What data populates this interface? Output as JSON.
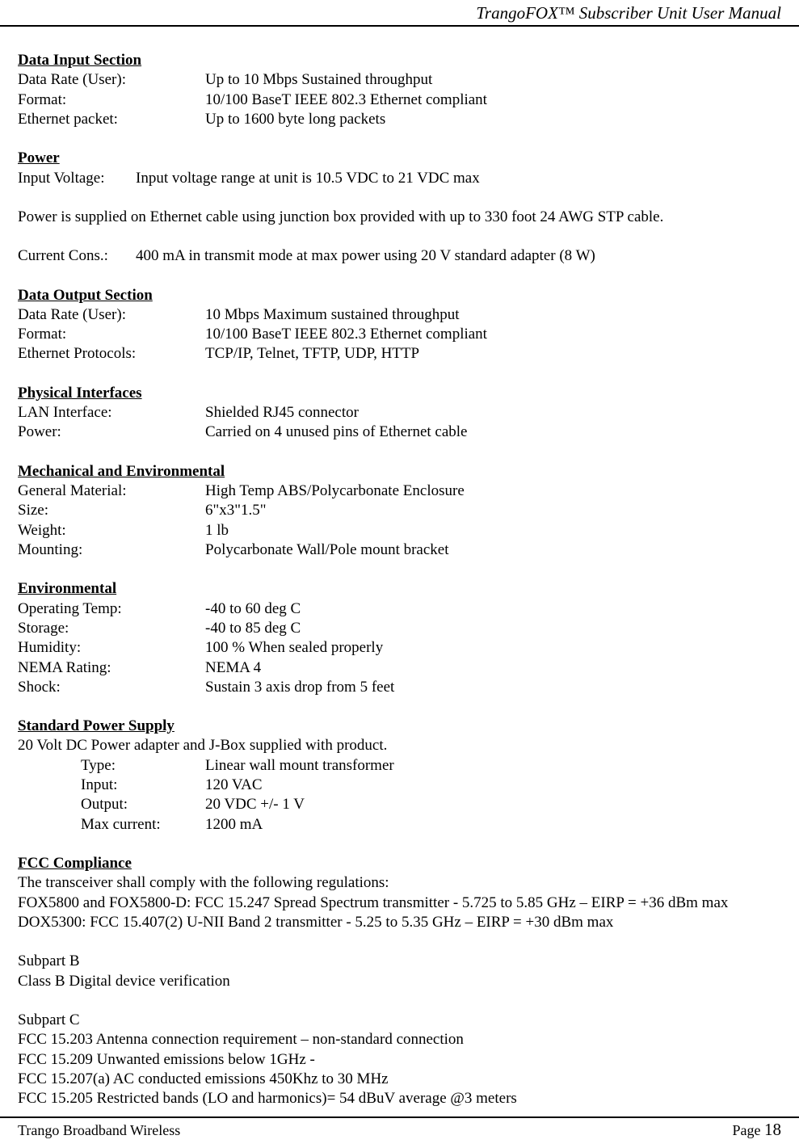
{
  "header": {
    "title": "TrangoFOX™ Subscriber Unit User Manual"
  },
  "sections": {
    "data_input": {
      "heading": "Data Input Section",
      "rows": [
        {
          "label": "Data Rate (User):",
          "value": "Up to 10 Mbps Sustained throughput"
        },
        {
          "label": "Format:",
          "value": "10/100 BaseT IEEE 802.3 Ethernet compliant"
        },
        {
          "label": "Ethernet packet:",
          "value": "Up to 1600 byte long packets"
        }
      ]
    },
    "power": {
      "heading": "Power",
      "row1": {
        "label": "Input Voltage:",
        "value": "Input voltage range at unit is 10.5 VDC to 21 VDC max"
      },
      "para": "Power is supplied on Ethernet cable using junction box provided with up to 330 foot 24 AWG STP cable.",
      "row2": {
        "label": "Current Cons.:",
        "value": "400 mA in transmit mode at max power using 20 V standard adapter (8 W)"
      }
    },
    "data_output": {
      "heading": "Data Output Section",
      "rows": [
        {
          "label": "Data Rate (User):",
          "value": "10 Mbps Maximum sustained throughput"
        },
        {
          "label": "Format:",
          "value": "10/100 BaseT IEEE 802.3 Ethernet compliant"
        },
        {
          "label": "Ethernet Protocols:",
          "value": "TCP/IP, Telnet, TFTP, UDP, HTTP"
        }
      ]
    },
    "physical_interfaces": {
      "heading": "Physical Interfaces",
      "rows": [
        {
          "label": "LAN Interface:",
          "value": "Shielded RJ45 connector"
        },
        {
          "label": "Power:",
          "value": "Carried on 4 unused pins of Ethernet cable"
        }
      ]
    },
    "mechanical": {
      "heading": "Mechanical and Environmental",
      "rows": [
        {
          "label": "General Material:",
          "value": "High Temp ABS/Polycarbonate Enclosure"
        },
        {
          "label": "Size:",
          "value": "6\"x3\"1.5\""
        },
        {
          "label": "Weight:",
          "value": "1 lb"
        },
        {
          "label": "Mounting:",
          "value": "Polycarbonate Wall/Pole mount bracket"
        }
      ]
    },
    "environmental": {
      "heading": "Environmental",
      "rows": [
        {
          "label": "Operating Temp:",
          "value": "-40 to 60 deg C"
        },
        {
          "label": "Storage:",
          "value": "-40 to 85 deg C"
        },
        {
          "label": "Humidity:",
          "value": "100 % When sealed properly"
        },
        {
          "label": "NEMA Rating:",
          "value": "NEMA 4"
        },
        {
          "label": "Shock:",
          "value": "Sustain 3 axis drop from 5 feet"
        }
      ]
    },
    "power_supply": {
      "heading": "Standard Power Supply",
      "intro": "20 Volt DC Power adapter and J-Box supplied with product.",
      "rows": [
        {
          "label": "Type:",
          "value": "Linear wall mount transformer"
        },
        {
          "label": "Input:",
          "value": "120 VAC"
        },
        {
          "label": "Output:",
          "value": "20 VDC +/- 1 V"
        },
        {
          "label": "Max current:",
          "value": "1200 mA"
        }
      ]
    },
    "fcc": {
      "heading": "FCC Compliance",
      "lines": [
        "The transceiver shall comply with the following regulations:",
        "FOX5800 and FOX5800-D: FCC 15.247 Spread Spectrum transmitter - 5.725 to 5.85 GHz – EIRP = +36 dBm max",
        "DOX5300:  FCC 15.407(2) U-NII Band 2 transmitter - 5.25 to 5.35 GHz – EIRP = +30 dBm max"
      ],
      "subpart_b": {
        "title": "Subpart B",
        "line": "Class B Digital device verification"
      },
      "subpart_c": {
        "title": "Subpart C",
        "lines": [
          "FCC 15.203 Antenna connection requirement – non-standard connection",
          "FCC 15.209 Unwanted emissions below 1GHz -",
          "FCC 15.207(a) AC conducted emissions 450Khz to 30 MHz",
          "FCC 15.205 Restricted bands (LO and harmonics)= 54 dBuV average @3 meters"
        ]
      }
    }
  },
  "footer": {
    "left": "Trango Broadband Wireless",
    "page_label": "Page ",
    "page_number": "18"
  }
}
